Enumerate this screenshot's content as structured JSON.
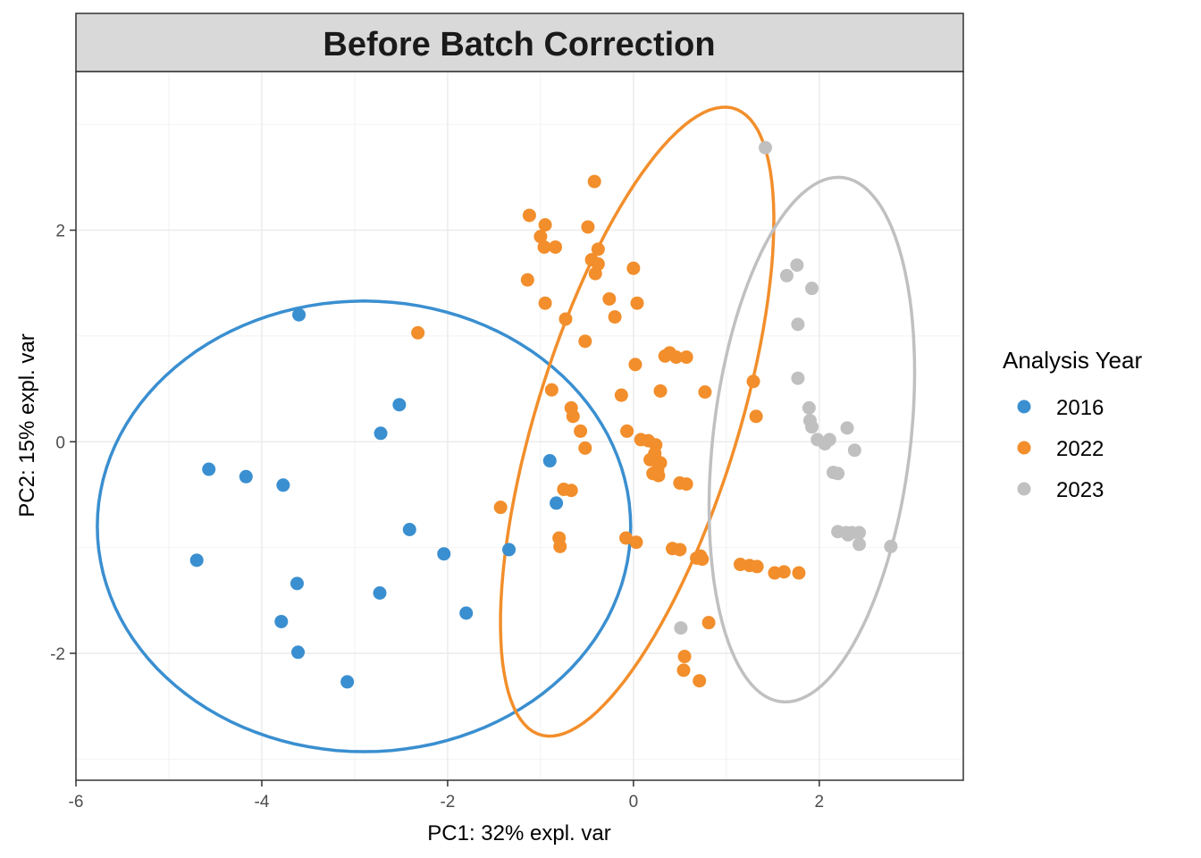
{
  "chart_data": {
    "type": "scatter",
    "title": "Before Batch Correction",
    "xlabel": "PC1: 32% expl. var",
    "ylabel": "PC2: 15% expl. var",
    "xlim": [
      -6.0,
      3.55
    ],
    "ylim": [
      -3.2,
      3.5
    ],
    "x_ticks": [
      -6,
      -4,
      -2,
      0,
      2
    ],
    "y_ticks": [
      -2,
      0,
      2
    ],
    "grid": true,
    "legend": {
      "title": "Analysis Year",
      "position": "right"
    },
    "series": [
      {
        "name": "2016",
        "color": "#3a8fd0",
        "points": [
          [
            -3.6,
            1.2
          ],
          [
            -2.52,
            0.35
          ],
          [
            -2.72,
            0.08
          ],
          [
            -4.57,
            -0.26
          ],
          [
            -4.17,
            -0.33
          ],
          [
            -3.77,
            -0.41
          ],
          [
            -0.9,
            -0.18
          ],
          [
            -0.83,
            -0.58
          ],
          [
            -2.41,
            -0.83
          ],
          [
            -1.34,
            -1.02
          ],
          [
            -2.04,
            -1.06
          ],
          [
            -4.7,
            -1.12
          ],
          [
            -3.62,
            -1.34
          ],
          [
            -2.73,
            -1.43
          ],
          [
            -1.8,
            -1.62
          ],
          [
            -3.79,
            -1.7
          ],
          [
            -3.61,
            -1.99
          ],
          [
            -3.08,
            -2.27
          ]
        ],
        "ellipse": {
          "cx": -2.9,
          "cy": -0.8,
          "rx": 2.87,
          "ry": 2.13,
          "angle_deg": 0
        }
      },
      {
        "name": "2022",
        "color": "#f28e2b",
        "points": [
          [
            -0.42,
            2.46
          ],
          [
            -1.12,
            2.14
          ],
          [
            -0.95,
            2.05
          ],
          [
            -0.49,
            2.03
          ],
          [
            -1.0,
            1.94
          ],
          [
            -0.96,
            1.84
          ],
          [
            -0.84,
            1.84
          ],
          [
            -0.38,
            1.82
          ],
          [
            -0.45,
            1.72
          ],
          [
            -0.38,
            1.68
          ],
          [
            0.0,
            1.64
          ],
          [
            -0.41,
            1.59
          ],
          [
            -1.14,
            1.53
          ],
          [
            -0.26,
            1.35
          ],
          [
            -0.95,
            1.31
          ],
          [
            0.04,
            1.31
          ],
          [
            -0.2,
            1.18
          ],
          [
            -0.73,
            1.16
          ],
          [
            -2.32,
            1.03
          ],
          [
            -0.52,
            0.95
          ],
          [
            0.39,
            0.84
          ],
          [
            0.34,
            0.81
          ],
          [
            0.46,
            0.8
          ],
          [
            0.57,
            0.8
          ],
          [
            0.02,
            0.73
          ],
          [
            1.29,
            0.57
          ],
          [
            -0.88,
            0.49
          ],
          [
            0.29,
            0.48
          ],
          [
            0.77,
            0.47
          ],
          [
            -0.13,
            0.44
          ],
          [
            -0.67,
            0.32
          ],
          [
            -0.65,
            0.24
          ],
          [
            1.32,
            0.24
          ],
          [
            -0.57,
            0.1
          ],
          [
            -0.07,
            0.1
          ],
          [
            0.08,
            0.02
          ],
          [
            0.16,
            0.01
          ],
          [
            0.24,
            -0.03
          ],
          [
            -0.52,
            -0.06
          ],
          [
            0.23,
            -0.11
          ],
          [
            0.18,
            -0.17
          ],
          [
            0.29,
            -0.2
          ],
          [
            0.26,
            -0.27
          ],
          [
            0.21,
            -0.3
          ],
          [
            0.27,
            -0.32
          ],
          [
            0.5,
            -0.39
          ],
          [
            0.57,
            -0.4
          ],
          [
            -0.75,
            -0.45
          ],
          [
            -0.67,
            -0.46
          ],
          [
            -1.43,
            -0.62
          ],
          [
            -0.8,
            -0.91
          ],
          [
            -0.08,
            -0.91
          ],
          [
            0.03,
            -0.95
          ],
          [
            -0.79,
            -0.99
          ],
          [
            0.42,
            -1.01
          ],
          [
            0.5,
            -1.02
          ],
          [
            0.72,
            -1.08
          ],
          [
            0.68,
            -1.1
          ],
          [
            0.74,
            -1.11
          ],
          [
            1.15,
            -1.16
          ],
          [
            1.25,
            -1.17
          ],
          [
            1.33,
            -1.18
          ],
          [
            1.52,
            -1.24
          ],
          [
            1.62,
            -1.23
          ],
          [
            1.78,
            -1.24
          ],
          [
            0.81,
            -1.71
          ],
          [
            0.55,
            -2.03
          ],
          [
            0.54,
            -2.16
          ],
          [
            0.71,
            -2.26
          ]
        ],
        "ellipse": {
          "cx": 0.04,
          "cy": 0.19,
          "rx": 1.07,
          "ry": 3.14,
          "angle_deg": -20
        }
      },
      {
        "name": "2023",
        "color": "#c0c0c0",
        "points": [
          [
            1.42,
            2.78
          ],
          [
            1.76,
            1.67
          ],
          [
            1.65,
            1.57
          ],
          [
            1.92,
            1.45
          ],
          [
            1.77,
            1.11
          ],
          [
            1.77,
            0.6
          ],
          [
            1.89,
            0.32
          ],
          [
            1.9,
            0.2
          ],
          [
            1.92,
            0.14
          ],
          [
            2.3,
            0.13
          ],
          [
            1.98,
            0.02
          ],
          [
            2.06,
            -0.02
          ],
          [
            2.11,
            0.02
          ],
          [
            2.38,
            -0.08
          ],
          [
            2.15,
            -0.29
          ],
          [
            2.2,
            -0.3
          ],
          [
            2.2,
            -0.85
          ],
          [
            2.29,
            -0.86
          ],
          [
            2.35,
            -0.86
          ],
          [
            2.43,
            -0.86
          ],
          [
            2.31,
            -0.88
          ],
          [
            2.43,
            -0.97
          ],
          [
            2.77,
            -0.99
          ],
          [
            0.51,
            -1.76
          ]
        ],
        "ellipse": {
          "cx": 1.92,
          "cy": 0.02,
          "rx": 1.06,
          "ry": 2.5,
          "angle_deg": -8
        }
      }
    ]
  }
}
